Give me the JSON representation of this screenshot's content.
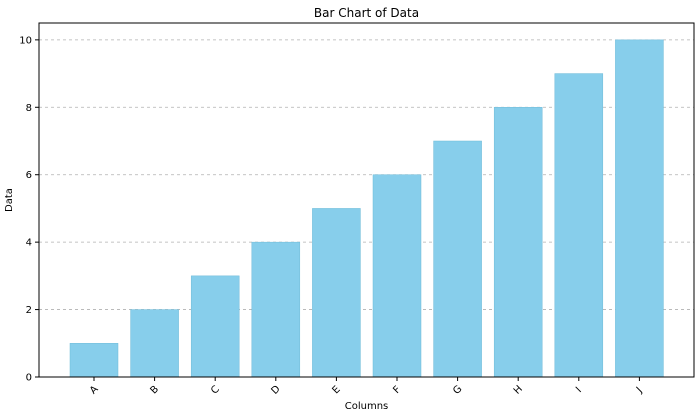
{
  "chart_data": {
    "type": "bar",
    "title": "Bar Chart of Data",
    "xlabel": "Columns",
    "ylabel": "Data",
    "categories": [
      "A",
      "B",
      "C",
      "D",
      "E",
      "F",
      "G",
      "H",
      "I",
      "J"
    ],
    "values": [
      1,
      2,
      3,
      4,
      5,
      6,
      7,
      8,
      9,
      10
    ],
    "ylim": [
      0,
      10.5
    ],
    "yticks": [
      0,
      2,
      4,
      6,
      8,
      10
    ],
    "grid": "y-dashed",
    "legend": "none",
    "bar_color": "#87CEEB",
    "bar_edge_color": "#6fbbd8",
    "grid_color": "#b0b0b0",
    "axis_color": "#000000",
    "xtick_rotation": "45deg"
  }
}
